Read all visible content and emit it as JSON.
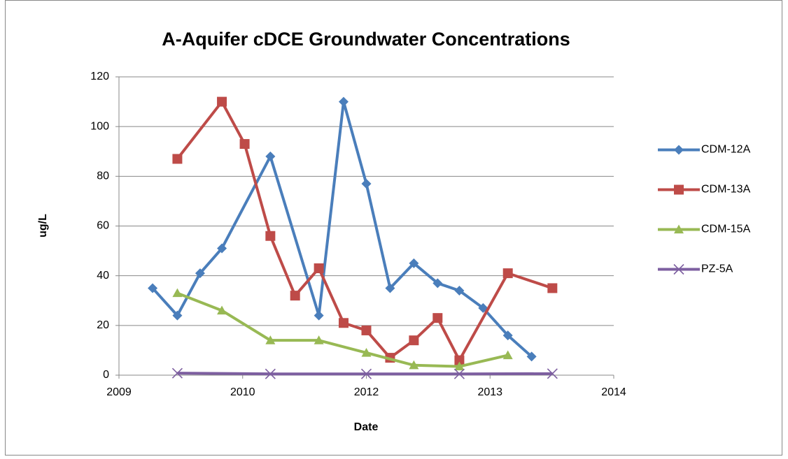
{
  "chart_data": {
    "type": "line",
    "title": "A-Aquifer cDCE Groundwater Concentrations",
    "x_label": "Date",
    "y_label": "ug/L",
    "xlim": [
      2009.7,
      2014.7
    ],
    "xticks": [
      {
        "value": 2009.7,
        "label": "2009"
      },
      {
        "value": 2010.95,
        "label": "2010"
      },
      {
        "value": 2012.2,
        "label": "2012"
      },
      {
        "value": 2013.45,
        "label": "2013"
      },
      {
        "value": 2014.7,
        "label": "2014"
      }
    ],
    "ylim": [
      0,
      120
    ],
    "yticks": [
      0,
      20,
      40,
      60,
      80,
      100,
      120
    ],
    "grid": true,
    "legend": "right",
    "series": [
      {
        "name": "CDM-12A",
        "color": "#4a7ebb",
        "marker": "diamond",
        "x": [
          2010.04,
          2010.29,
          2010.52,
          2010.74,
          2011.23,
          2011.72,
          2011.97,
          2012.2,
          2012.44,
          2012.68,
          2012.92,
          2013.14,
          2013.38,
          2013.63,
          2013.87
        ],
        "values": [
          35,
          24,
          41,
          51,
          88,
          24,
          110,
          77,
          35,
          45,
          37,
          34,
          27,
          16,
          7.5
        ]
      },
      {
        "name": "CDM-13A",
        "color": "#be4b48",
        "marker": "square",
        "x": [
          2010.29,
          2010.74,
          2010.97,
          2011.23,
          2011.48,
          2011.72,
          2011.97,
          2012.2,
          2012.44,
          2012.68,
          2012.92,
          2013.14,
          2013.63,
          2014.08
        ],
        "values": [
          87,
          110,
          93,
          56,
          32,
          43,
          21,
          18,
          7,
          14,
          23,
          6,
          41,
          35
        ]
      },
      {
        "name": "CDM-15A",
        "color": "#98b954",
        "marker": "triangle",
        "x": [
          2010.29,
          2010.74,
          2011.23,
          2011.72,
          2012.2,
          2012.68,
          2013.14,
          2013.63
        ],
        "values": [
          33,
          26,
          14,
          14,
          9,
          4,
          3.5,
          8
        ]
      },
      {
        "name": "PZ-5A",
        "color": "#7d5fa0",
        "marker": "x",
        "x": [
          2010.29,
          2011.23,
          2012.2,
          2013.14,
          2014.08
        ],
        "values": [
          0.8,
          0.5,
          0.5,
          0.5,
          0.6
        ]
      }
    ]
  }
}
